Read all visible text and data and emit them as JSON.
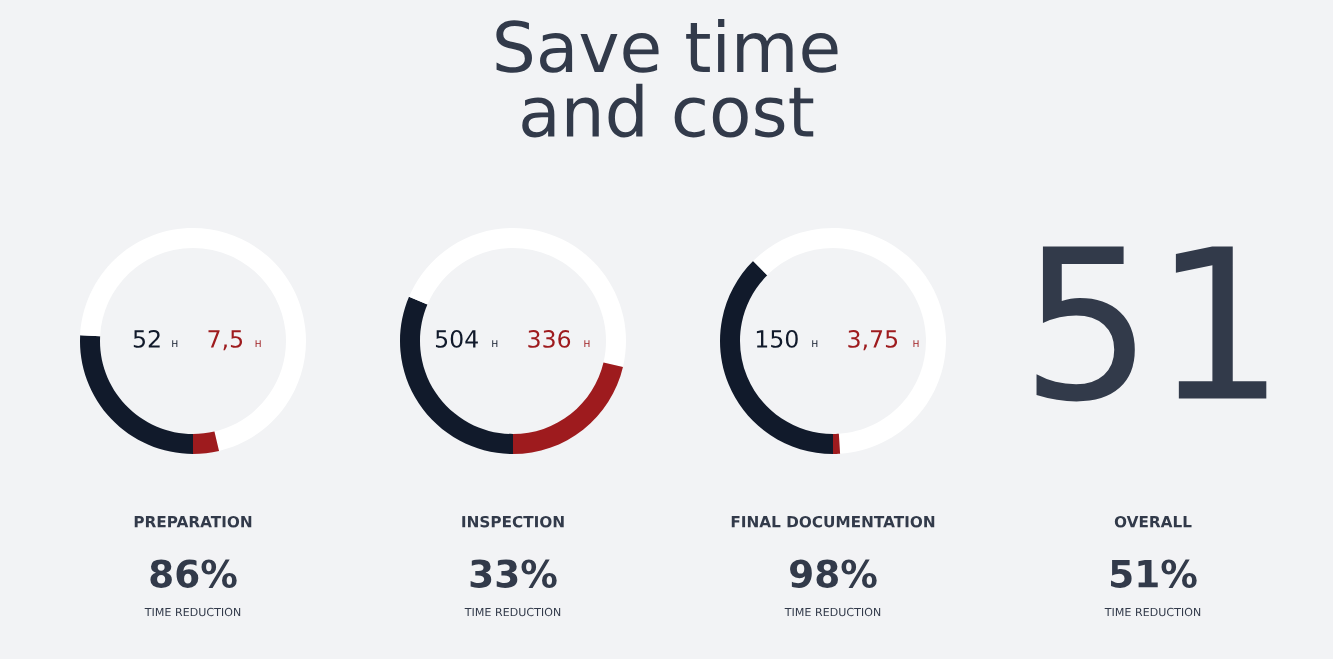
{
  "chart_data": [
    {
      "type": "donut",
      "title": "Save time\nand cost",
      "categories": [
        null,
        null,
        null,
        null
      ],
      "values": [
        46.3,
        3.7,
        25.8,
        24.2
      ],
      "colors": [
        "#ffffff",
        "#9e1b1e",
        "#111a2b",
        "#ffffff"
      ],
      "xlabel": "PREPARATION",
      "annotations": [
        "52 H",
        "7,5 H",
        "86%",
        "TIME REDUCTION"
      ]
    },
    {
      "type": "donut",
      "categories": [
        null,
        null,
        null,
        null
      ],
      "values": [
        28.7,
        21.3,
        31.4,
        18.6
      ],
      "colors": [
        "#ffffff",
        "#9e1b1e",
        "#111a2b",
        "#ffffff"
      ],
      "xlabel": "INSPECTION",
      "annotations": [
        "504 H",
        "336 H",
        "33%",
        "TIME REDUCTION"
      ]
    },
    {
      "type": "donut",
      "categories": [
        null,
        null,
        null,
        null
      ],
      "values": [
        49,
        1,
        37.5,
        12.5
      ],
      "colors": [
        "#ffffff",
        "#9e1b1e",
        "#111a2b",
        "#ffffff"
      ],
      "xlabel": "FINAL DOCUMENTATION",
      "annotations": [
        "150 H",
        "3,75 H",
        "98%",
        "TIME REDUCTION"
      ]
    },
    {
      "type": "other",
      "annotations": [
        "51",
        "OVERALL",
        "51%",
        "TIME REDUCTION"
      ]
    }
  ]
}
